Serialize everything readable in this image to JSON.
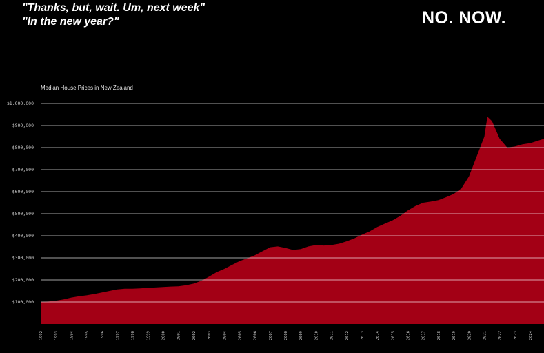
{
  "header": {
    "quote_line1": "\"Thanks, but, wait. Um, next week\"",
    "quote_line2": "\"In the new year?\"",
    "brand": "NO. NOW."
  },
  "colors": {
    "area": "#a30015",
    "gridline": "#ffffff",
    "background": "#000000"
  },
  "chart_data": {
    "type": "area",
    "title": "Median House Prices in New Zealand",
    "xlabel": "",
    "ylabel": "",
    "xlim": [
      1992,
      2024.9
    ],
    "ylim": [
      0,
      1000000
    ],
    "grid": true,
    "yticks": [
      {
        "value": 100000,
        "label": "$100,000"
      },
      {
        "value": 200000,
        "label": "$200,000"
      },
      {
        "value": 300000,
        "label": "$300,000"
      },
      {
        "value": 400000,
        "label": "$400,000"
      },
      {
        "value": 500000,
        "label": "$500,000"
      },
      {
        "value": 600000,
        "label": "$600,000"
      },
      {
        "value": 700000,
        "label": "$700,000"
      },
      {
        "value": 800000,
        "label": "$800,000"
      },
      {
        "value": 900000,
        "label": "$900,000"
      },
      {
        "value": 1000000,
        "label": "$1,000,000"
      }
    ],
    "xticks": [
      "1992",
      "1993",
      "1994",
      "1995",
      "1996",
      "1997",
      "1998",
      "1999",
      "2000",
      "2001",
      "2002",
      "2003",
      "2004",
      "2005",
      "2006",
      "2007",
      "2008",
      "2009",
      "2010",
      "2011",
      "2012",
      "2013",
      "2014",
      "2015",
      "2016",
      "2017",
      "2018",
      "2019",
      "2020",
      "2021",
      "2022",
      "2023",
      "2024"
    ],
    "series": [
      {
        "x": [
          1992,
          1992.5,
          1993,
          1993.5,
          1994,
          1994.5,
          1995,
          1995.5,
          1996,
          1996.5,
          1997,
          1997.5,
          1998,
          1998.5,
          1999,
          1999.5,
          2000,
          2000.5,
          2001,
          2001.5,
          2002,
          2002.5,
          2003,
          2003.5,
          2004,
          2004.5,
          2005,
          2005.5,
          2006,
          2006.5,
          2007,
          2007.5,
          2008,
          2008.5,
          2009,
          2009.5,
          2010,
          2010.5,
          2011,
          2011.5,
          2012,
          2012.5,
          2013,
          2013.5,
          2014,
          2014.5,
          2015,
          2015.5,
          2016,
          2016.5,
          2017,
          2017.5,
          2018,
          2018.5,
          2019,
          2019.5,
          2020,
          2020.5,
          2021,
          2021.2,
          2021.5,
          2022,
          2022.5,
          2023,
          2023.5,
          2024,
          2024.9
        ],
        "values": [
          100000,
          102000,
          106000,
          112000,
          120000,
          126000,
          130000,
          136000,
          143000,
          150000,
          157000,
          160000,
          160000,
          162000,
          164000,
          166000,
          168000,
          170000,
          171000,
          176000,
          183000,
          196000,
          215000,
          235000,
          250000,
          268000,
          285000,
          298000,
          312000,
          330000,
          348000,
          352000,
          345000,
          336000,
          340000,
          352000,
          358000,
          356000,
          358000,
          364000,
          375000,
          388000,
          405000,
          420000,
          440000,
          455000,
          470000,
          490000,
          515000,
          535000,
          550000,
          555000,
          562000,
          575000,
          590000,
          615000,
          670000,
          760000,
          850000,
          940000,
          920000,
          840000,
          800000,
          805000,
          815000,
          820000,
          840000
        ]
      }
    ]
  }
}
